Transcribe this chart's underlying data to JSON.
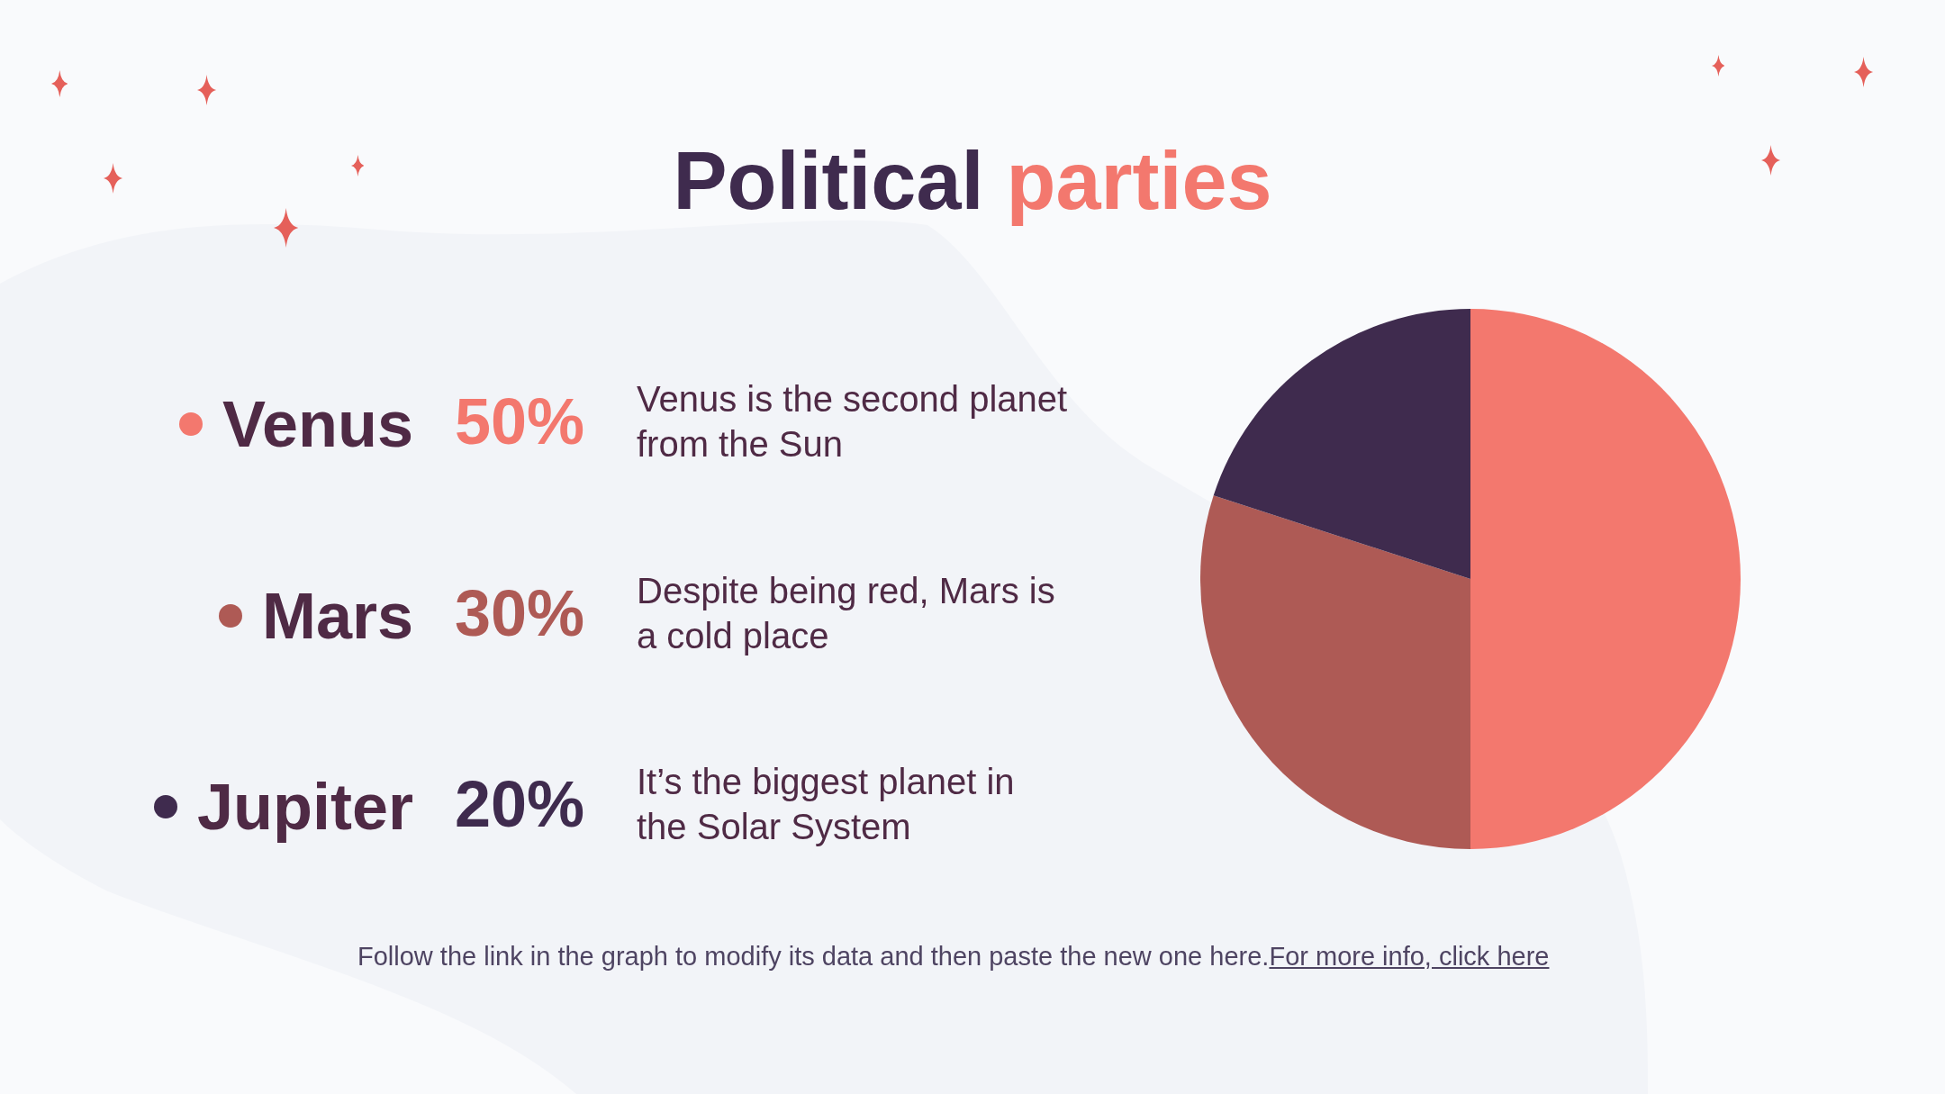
{
  "chart_data": {
    "type": "pie",
    "title": "Political parties",
    "categories": [
      "Venus",
      "Mars",
      "Jupiter"
    ],
    "values": [
      50,
      30,
      20
    ],
    "value_labels": [
      "50%",
      "30%",
      "20%"
    ],
    "colors": [
      "#f3786e",
      "#ae5a55",
      "#3f2b4e"
    ],
    "legend": "left",
    "annotations": [
      "Venus is the second planet from the Sun",
      "Despite being red, Mars is a cold place",
      "It’s the biggest planet in the Solar System",
      "Follow the link in the graph to modify its data and then paste the new one here.",
      "For more info, click here"
    ]
  }
}
